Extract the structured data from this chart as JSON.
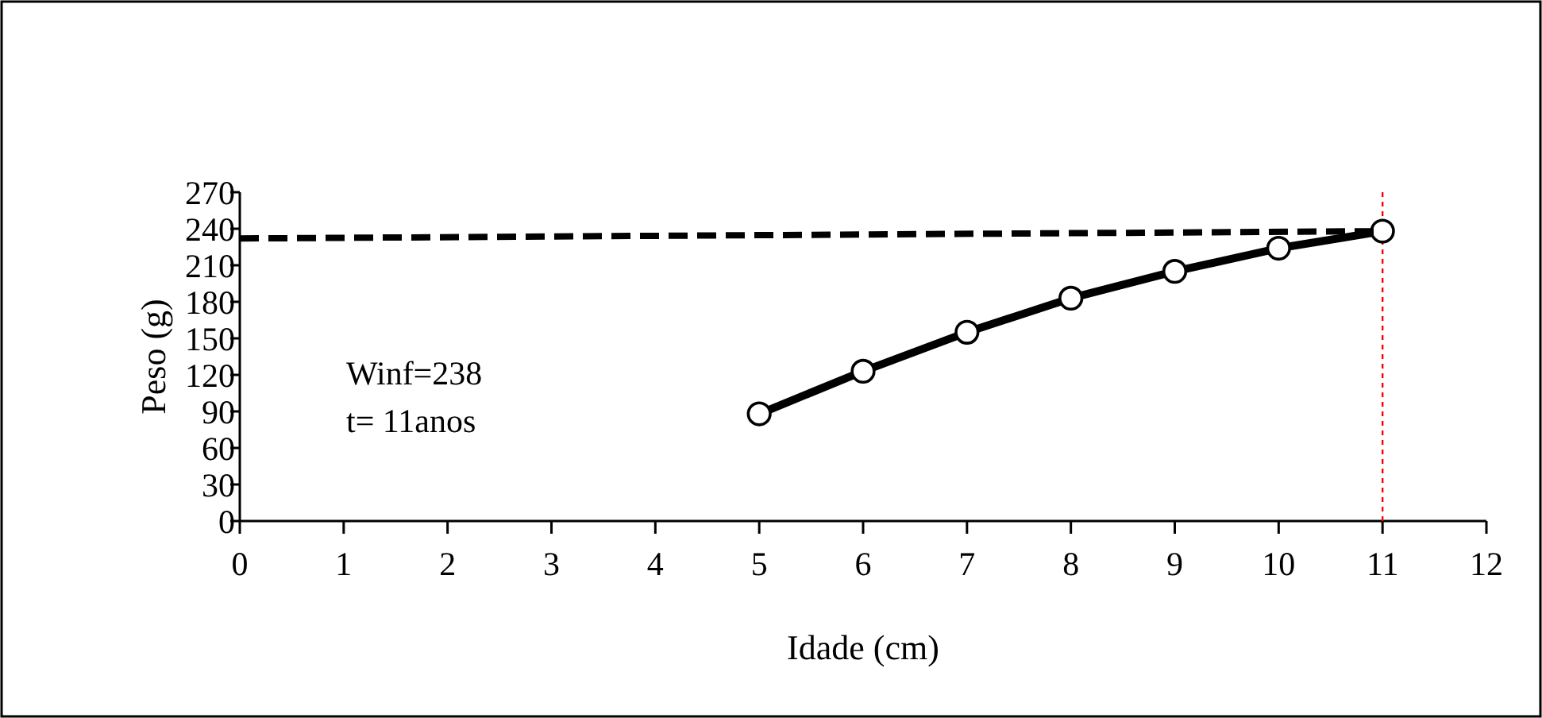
{
  "chart_data": {
    "type": "line",
    "xlabel": "Idade (cm)",
    "ylabel": "Peso (g)",
    "xlim": [
      0,
      12
    ],
    "xticks": [
      0,
      1,
      2,
      3,
      4,
      5,
      6,
      7,
      8,
      9,
      10,
      11,
      12
    ],
    "ylim": [
      0,
      270
    ],
    "yticks": [
      0,
      30,
      60,
      90,
      120,
      150,
      180,
      210,
      240,
      270
    ],
    "series": [
      {
        "color": "#000000",
        "x": [
          5,
          6,
          7,
          8,
          9,
          10,
          11
        ],
        "values": [
          88,
          123,
          155,
          183,
          205,
          224,
          238
        ],
        "marker": "circle",
        "line_style": "solid"
      },
      {
        "color": "#000000",
        "x": [
          0,
          11
        ],
        "values": [
          232,
          238
        ],
        "marker": "none",
        "line_style": "dashed"
      }
    ],
    "ref_lines": [
      {
        "axis": "x",
        "value": 11,
        "color": "#ff0000",
        "line_style": "dotted"
      }
    ],
    "annotations": [
      "Winf=238",
      "t= 11anos"
    ],
    "grid": false
  }
}
